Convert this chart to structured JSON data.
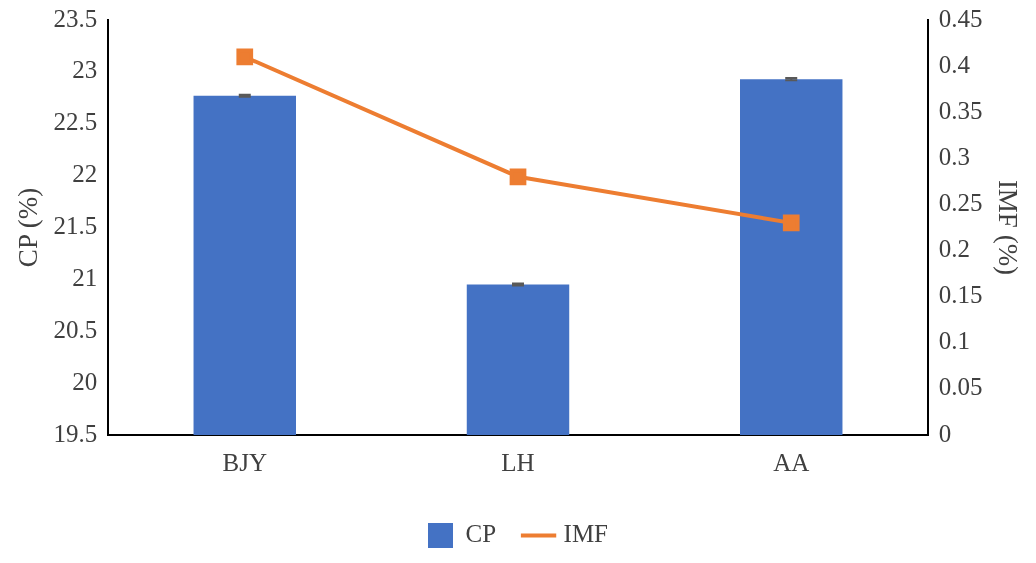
{
  "chart_data": {
    "type": "bar",
    "categories": [
      "BJY",
      "LH",
      "AA"
    ],
    "ylabel": "CP (%)",
    "y2label": "IMF (%)",
    "series": [
      {
        "name": "CP",
        "color": "#4472c4",
        "values": [
          22.77,
          20.95,
          22.93
        ],
        "errors": [
          0.01,
          0.01,
          0.01
        ]
      },
      {
        "name": "IMF",
        "type": "line",
        "axis": "y2",
        "color": "#ed7d31",
        "values": [
          0.41,
          0.28,
          0.23
        ],
        "marker": "square",
        "line_style": "solid"
      }
    ],
    "ylim": [
      19.5,
      23.5
    ],
    "yticks": [
      19.5,
      20,
      20.5,
      21,
      21.5,
      22,
      22.5,
      23,
      23.5
    ],
    "y2lim": [
      0,
      0.45
    ],
    "y2ticks": [
      0,
      0.05,
      0.1,
      0.15,
      0.2,
      0.25,
      0.3,
      0.35,
      0.4,
      0.45
    ],
    "grid": false,
    "legend": "bottom"
  }
}
